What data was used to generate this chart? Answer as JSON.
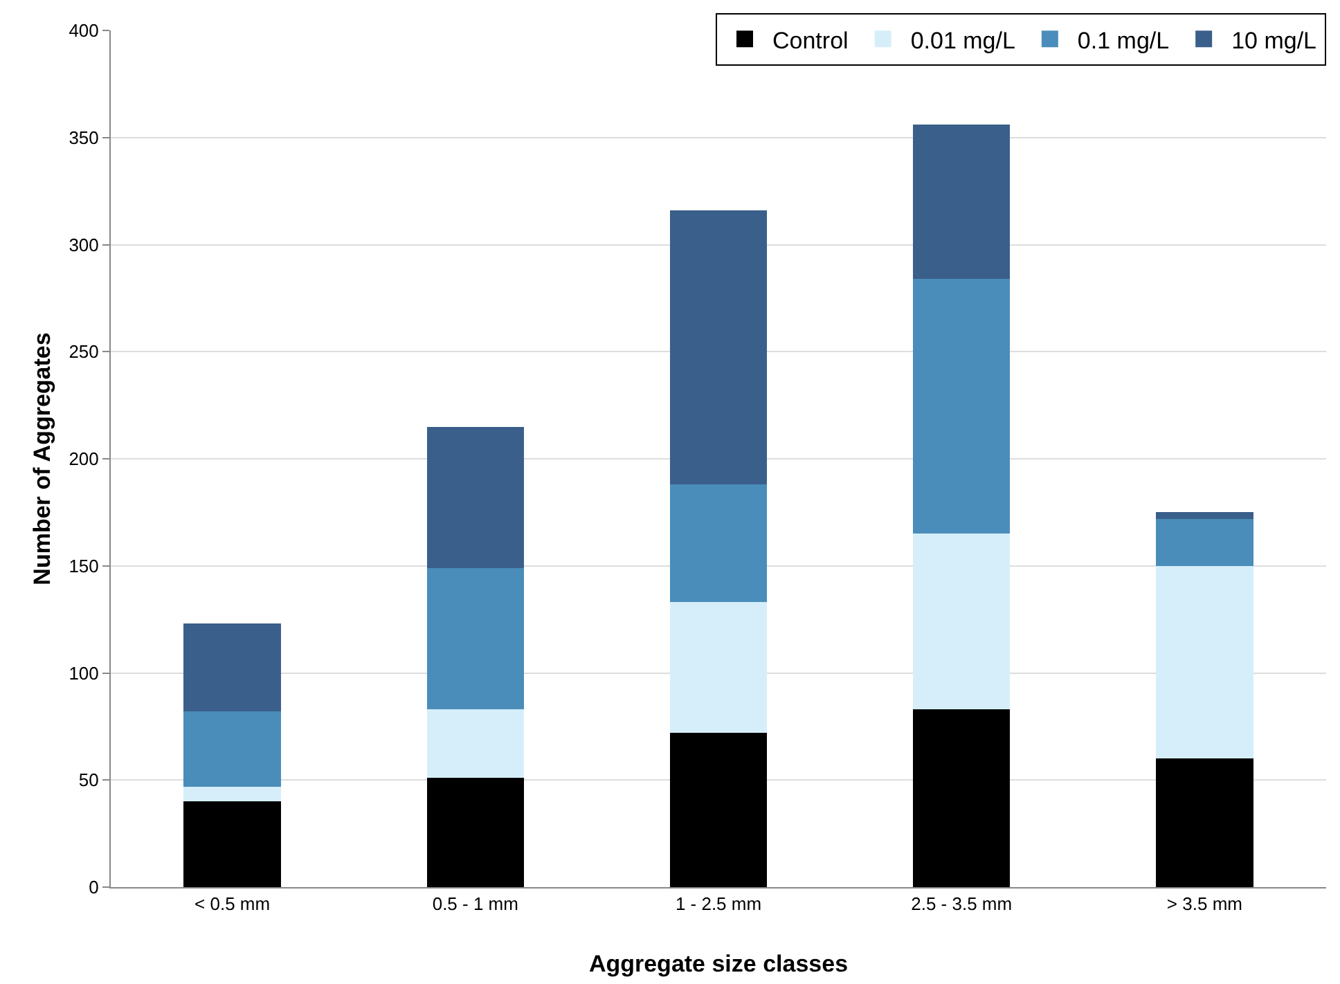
{
  "chart_data": {
    "type": "bar",
    "stacked": true,
    "xlabel": "Aggregate size classes",
    "ylabel": "Number of Aggregates",
    "categories": [
      "< 0.5 mm",
      "0.5 - 1 mm",
      "1 - 2.5 mm",
      "2.5 - 3.5 mm",
      "> 3.5 mm"
    ],
    "series": [
      {
        "name": "Control",
        "color": "#000000",
        "values": [
          40,
          51,
          72,
          83,
          60
        ]
      },
      {
        "name": "0.01 mg/L",
        "color": "#d6eefa",
        "values": [
          7,
          32,
          61,
          82,
          90
        ]
      },
      {
        "name": "0.1 mg/L",
        "color": "#4a8dba",
        "values": [
          35,
          66,
          55,
          119,
          22
        ]
      },
      {
        "name": "10 mg/L",
        "color": "#3a5f8a",
        "values": [
          41,
          66,
          128,
          72,
          3
        ]
      }
    ],
    "ylim": [
      0,
      400
    ],
    "yticks": [
      0,
      50,
      100,
      150,
      200,
      250,
      300,
      350,
      400
    ],
    "grid": "y",
    "legend": "top right"
  }
}
